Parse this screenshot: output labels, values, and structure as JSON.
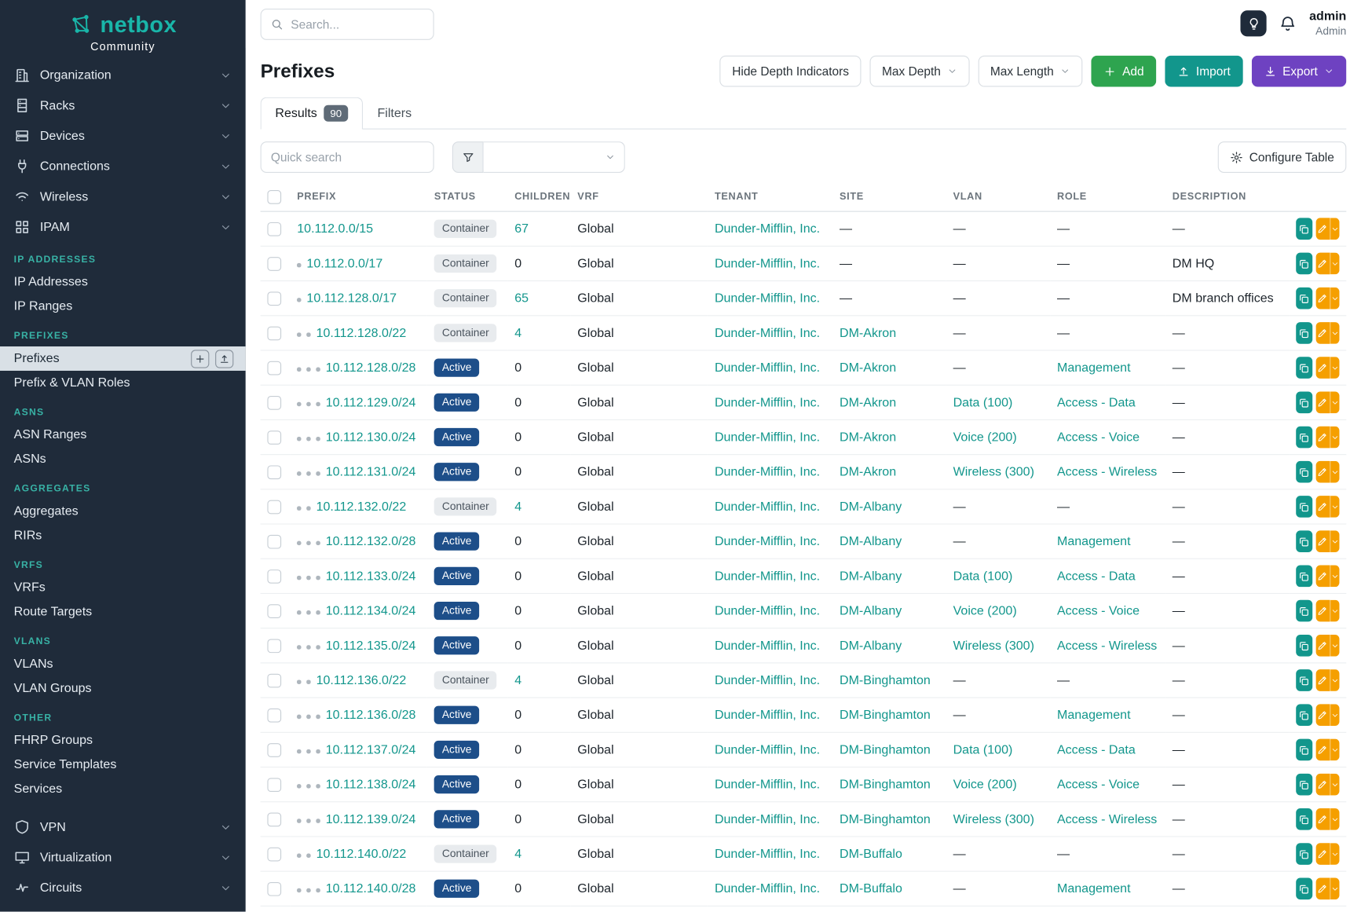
{
  "colors": {
    "teal": "#12968c",
    "teal_bright": "#19b6a9",
    "green": "#2ea44f",
    "purple": "#6e42c1",
    "amber": "#f59f00",
    "active_badge": "#1d4e89",
    "sidebar_bg": "#1f2b3a",
    "section_teal": "#38b2a5"
  },
  "brand": {
    "name": "netbox",
    "subtitle": "Community"
  },
  "topbar": {
    "search_placeholder": "Search...",
    "user_name": "admin",
    "user_role": "Admin"
  },
  "sidebar": {
    "top_items": [
      {
        "label": "Organization",
        "icon": "organization-icon"
      },
      {
        "label": "Racks",
        "icon": "racks-icon"
      },
      {
        "label": "Devices",
        "icon": "devices-icon"
      },
      {
        "label": "Connections",
        "icon": "connections-icon"
      },
      {
        "label": "Wireless",
        "icon": "wireless-icon"
      },
      {
        "label": "IPAM",
        "icon": "ipam-icon"
      }
    ],
    "sections": [
      {
        "title": "IP ADDRESSES",
        "items": [
          {
            "label": "IP Addresses"
          },
          {
            "label": "IP Ranges"
          }
        ]
      },
      {
        "title": "PREFIXES",
        "items": [
          {
            "label": "Prefixes",
            "active": true
          },
          {
            "label": "Prefix & VLAN Roles"
          }
        ]
      },
      {
        "title": "ASNS",
        "items": [
          {
            "label": "ASN Ranges"
          },
          {
            "label": "ASNs"
          }
        ]
      },
      {
        "title": "AGGREGATES",
        "items": [
          {
            "label": "Aggregates"
          },
          {
            "label": "RIRs"
          }
        ]
      },
      {
        "title": "VRFS",
        "items": [
          {
            "label": "VRFs"
          },
          {
            "label": "Route Targets"
          }
        ]
      },
      {
        "title": "VLANS",
        "items": [
          {
            "label": "VLANs"
          },
          {
            "label": "VLAN Groups"
          }
        ]
      },
      {
        "title": "OTHER",
        "items": [
          {
            "label": "FHRP Groups"
          },
          {
            "label": "Service Templates"
          },
          {
            "label": "Services"
          }
        ]
      }
    ],
    "bottom_items": [
      {
        "label": "VPN",
        "icon": "vpn-icon"
      },
      {
        "label": "Virtualization",
        "icon": "virtualization-icon"
      },
      {
        "label": "Circuits",
        "icon": "circuits-icon"
      }
    ]
  },
  "page": {
    "title": "Prefixes",
    "toolbar": {
      "hide_depth_label": "Hide Depth Indicators",
      "max_depth_label": "Max Depth",
      "max_length_label": "Max Length",
      "add_label": "Add",
      "import_label": "Import",
      "export_label": "Export"
    },
    "tabs": [
      {
        "label": "Results",
        "badge": "90",
        "active": true
      },
      {
        "label": "Filters",
        "active": false
      }
    ],
    "quick_search_placeholder": "Quick search",
    "configure_table_label": "Configure Table"
  },
  "table": {
    "columns": [
      {
        "key": "prefix",
        "label": "PREFIX"
      },
      {
        "key": "status",
        "label": "STATUS"
      },
      {
        "key": "children",
        "label": "CHILDREN"
      },
      {
        "key": "vrf",
        "label": "VRF"
      },
      {
        "key": "tenant",
        "label": "TENANT"
      },
      {
        "key": "site",
        "label": "SITE"
      },
      {
        "key": "vlan",
        "label": "VLAN"
      },
      {
        "key": "role",
        "label": "ROLE"
      },
      {
        "key": "description",
        "label": "DESCRIPTION"
      }
    ],
    "rows": [
      {
        "depth": 0,
        "prefix": "10.112.0.0/15",
        "status": "Container",
        "children": "67",
        "vrf": "Global",
        "tenant": "Dunder-Mifflin, Inc.",
        "site": "—",
        "vlan": "—",
        "role": "—",
        "description": "—"
      },
      {
        "depth": 1,
        "prefix": "10.112.0.0/17",
        "status": "Container",
        "children": "0",
        "vrf": "Global",
        "tenant": "Dunder-Mifflin, Inc.",
        "site": "—",
        "vlan": "—",
        "role": "—",
        "description": "DM HQ"
      },
      {
        "depth": 1,
        "prefix": "10.112.128.0/17",
        "status": "Container",
        "children": "65",
        "vrf": "Global",
        "tenant": "Dunder-Mifflin, Inc.",
        "site": "—",
        "vlan": "—",
        "role": "—",
        "description": "DM branch offices"
      },
      {
        "depth": 2,
        "prefix": "10.112.128.0/22",
        "status": "Container",
        "children": "4",
        "vrf": "Global",
        "tenant": "Dunder-Mifflin, Inc.",
        "site": "DM-Akron",
        "vlan": "—",
        "role": "—",
        "description": "—"
      },
      {
        "depth": 3,
        "prefix": "10.112.128.0/28",
        "status": "Active",
        "children": "0",
        "vrf": "Global",
        "tenant": "Dunder-Mifflin, Inc.",
        "site": "DM-Akron",
        "vlan": "—",
        "role": "Management",
        "description": "—"
      },
      {
        "depth": 3,
        "prefix": "10.112.129.0/24",
        "status": "Active",
        "children": "0",
        "vrf": "Global",
        "tenant": "Dunder-Mifflin, Inc.",
        "site": "DM-Akron",
        "vlan": "Data (100)",
        "role": "Access - Data",
        "description": "—"
      },
      {
        "depth": 3,
        "prefix": "10.112.130.0/24",
        "status": "Active",
        "children": "0",
        "vrf": "Global",
        "tenant": "Dunder-Mifflin, Inc.",
        "site": "DM-Akron",
        "vlan": "Voice (200)",
        "role": "Access - Voice",
        "description": "—"
      },
      {
        "depth": 3,
        "prefix": "10.112.131.0/24",
        "status": "Active",
        "children": "0",
        "vrf": "Global",
        "tenant": "Dunder-Mifflin, Inc.",
        "site": "DM-Akron",
        "vlan": "Wireless (300)",
        "role": "Access - Wireless",
        "description": "—"
      },
      {
        "depth": 2,
        "prefix": "10.112.132.0/22",
        "status": "Container",
        "children": "4",
        "vrf": "Global",
        "tenant": "Dunder-Mifflin, Inc.",
        "site": "DM-Albany",
        "vlan": "—",
        "role": "—",
        "description": "—"
      },
      {
        "depth": 3,
        "prefix": "10.112.132.0/28",
        "status": "Active",
        "children": "0",
        "vrf": "Global",
        "tenant": "Dunder-Mifflin, Inc.",
        "site": "DM-Albany",
        "vlan": "—",
        "role": "Management",
        "description": "—"
      },
      {
        "depth": 3,
        "prefix": "10.112.133.0/24",
        "status": "Active",
        "children": "0",
        "vrf": "Global",
        "tenant": "Dunder-Mifflin, Inc.",
        "site": "DM-Albany",
        "vlan": "Data (100)",
        "role": "Access - Data",
        "description": "—"
      },
      {
        "depth": 3,
        "prefix": "10.112.134.0/24",
        "status": "Active",
        "children": "0",
        "vrf": "Global",
        "tenant": "Dunder-Mifflin, Inc.",
        "site": "DM-Albany",
        "vlan": "Voice (200)",
        "role": "Access - Voice",
        "description": "—"
      },
      {
        "depth": 3,
        "prefix": "10.112.135.0/24",
        "status": "Active",
        "children": "0",
        "vrf": "Global",
        "tenant": "Dunder-Mifflin, Inc.",
        "site": "DM-Albany",
        "vlan": "Wireless (300)",
        "role": "Access - Wireless",
        "description": "—"
      },
      {
        "depth": 2,
        "prefix": "10.112.136.0/22",
        "status": "Container",
        "children": "4",
        "vrf": "Global",
        "tenant": "Dunder-Mifflin, Inc.",
        "site": "DM-Binghamton",
        "vlan": "—",
        "role": "—",
        "description": "—"
      },
      {
        "depth": 3,
        "prefix": "10.112.136.0/28",
        "status": "Active",
        "children": "0",
        "vrf": "Global",
        "tenant": "Dunder-Mifflin, Inc.",
        "site": "DM-Binghamton",
        "vlan": "—",
        "role": "Management",
        "description": "—"
      },
      {
        "depth": 3,
        "prefix": "10.112.137.0/24",
        "status": "Active",
        "children": "0",
        "vrf": "Global",
        "tenant": "Dunder-Mifflin, Inc.",
        "site": "DM-Binghamton",
        "vlan": "Data (100)",
        "role": "Access - Data",
        "description": "—"
      },
      {
        "depth": 3,
        "prefix": "10.112.138.0/24",
        "status": "Active",
        "children": "0",
        "vrf": "Global",
        "tenant": "Dunder-Mifflin, Inc.",
        "site": "DM-Binghamton",
        "vlan": "Voice (200)",
        "role": "Access - Voice",
        "description": "—"
      },
      {
        "depth": 3,
        "prefix": "10.112.139.0/24",
        "status": "Active",
        "children": "0",
        "vrf": "Global",
        "tenant": "Dunder-Mifflin, Inc.",
        "site": "DM-Binghamton",
        "vlan": "Wireless (300)",
        "role": "Access - Wireless",
        "description": "—"
      },
      {
        "depth": 2,
        "prefix": "10.112.140.0/22",
        "status": "Container",
        "children": "4",
        "vrf": "Global",
        "tenant": "Dunder-Mifflin, Inc.",
        "site": "DM-Buffalo",
        "vlan": "—",
        "role": "—",
        "description": "—"
      },
      {
        "depth": 3,
        "prefix": "10.112.140.0/28",
        "status": "Active",
        "children": "0",
        "vrf": "Global",
        "tenant": "Dunder-Mifflin, Inc.",
        "site": "DM-Buffalo",
        "vlan": "—",
        "role": "Management",
        "description": "—"
      }
    ]
  }
}
